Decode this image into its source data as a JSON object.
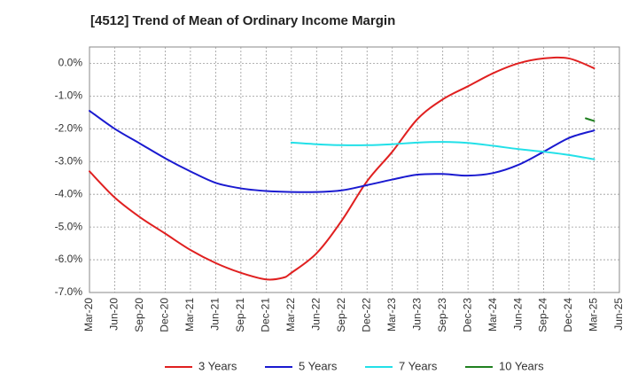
{
  "chart_data": {
    "type": "line",
    "title": "[4512]  Trend of Mean of Ordinary Income Margin",
    "xlabel": "",
    "ylabel": "",
    "x_ticks": [
      "Mar-20",
      "Jun-20",
      "Sep-20",
      "Dec-20",
      "Mar-21",
      "Jun-21",
      "Sep-21",
      "Dec-21",
      "Mar-22",
      "Jun-22",
      "Sep-22",
      "Dec-22",
      "Mar-23",
      "Jun-23",
      "Sep-23",
      "Dec-23",
      "Mar-24",
      "Jun-24",
      "Sep-24",
      "Dec-24",
      "Mar-25",
      "Jun-25"
    ],
    "y_ticks": [
      "0.0%",
      "-1.0%",
      "-2.0%",
      "-3.0%",
      "-4.0%",
      "-5.0%",
      "-6.0%",
      "-7.0%"
    ],
    "ylim": [
      -7.0,
      0.5
    ],
    "grid": true,
    "legend_position": "bottom",
    "series": [
      {
        "name": "3 Years",
        "color": "#e02020",
        "points": [
          [
            "Mar-20",
            -3.3
          ],
          [
            "Jun-20",
            -4.1
          ],
          [
            "Sep-20",
            -4.7
          ],
          [
            "Dec-20",
            -5.2
          ],
          [
            "Mar-21",
            -5.7
          ],
          [
            "Jun-21",
            -6.1
          ],
          [
            "Sep-21",
            -6.4
          ],
          [
            "Dec-21",
            -6.6
          ],
          [
            "Feb-22",
            -6.55
          ],
          [
            "Mar-22",
            -6.4
          ],
          [
            "Jun-22",
            -5.8
          ],
          [
            "Sep-22",
            -4.8
          ],
          [
            "Dec-22",
            -3.6
          ],
          [
            "Mar-23",
            -2.7
          ],
          [
            "Jun-23",
            -1.7
          ],
          [
            "Sep-23",
            -1.1
          ],
          [
            "Dec-23",
            -0.7
          ],
          [
            "Mar-24",
            -0.3
          ],
          [
            "Jun-24",
            0.0
          ],
          [
            "Sep-24",
            0.15
          ],
          [
            "Dec-24",
            0.15
          ],
          [
            "Mar-25",
            -0.15
          ]
        ]
      },
      {
        "name": "5 Years",
        "color": "#1a1ad0",
        "points": [
          [
            "Mar-20",
            -1.45
          ],
          [
            "Jun-20",
            -2.0
          ],
          [
            "Sep-20",
            -2.45
          ],
          [
            "Dec-20",
            -2.9
          ],
          [
            "Mar-21",
            -3.3
          ],
          [
            "Jun-21",
            -3.65
          ],
          [
            "Sep-21",
            -3.82
          ],
          [
            "Dec-21",
            -3.9
          ],
          [
            "Mar-22",
            -3.93
          ],
          [
            "Jun-22",
            -3.93
          ],
          [
            "Sep-22",
            -3.88
          ],
          [
            "Dec-22",
            -3.72
          ],
          [
            "Mar-23",
            -3.55
          ],
          [
            "Jun-23",
            -3.4
          ],
          [
            "Sep-23",
            -3.38
          ],
          [
            "Dec-23",
            -3.43
          ],
          [
            "Mar-24",
            -3.35
          ],
          [
            "Jun-24",
            -3.1
          ],
          [
            "Sep-24",
            -2.7
          ],
          [
            "Dec-24",
            -2.28
          ],
          [
            "Mar-25",
            -2.05
          ]
        ]
      },
      {
        "name": "7 Years",
        "color": "#22e0e8",
        "points": [
          [
            "Mar-22",
            -2.42
          ],
          [
            "Jun-22",
            -2.47
          ],
          [
            "Sep-22",
            -2.5
          ],
          [
            "Dec-22",
            -2.5
          ],
          [
            "Mar-23",
            -2.47
          ],
          [
            "Jun-23",
            -2.42
          ],
          [
            "Sep-23",
            -2.4
          ],
          [
            "Dec-23",
            -2.43
          ],
          [
            "Mar-24",
            -2.52
          ],
          [
            "Jun-24",
            -2.62
          ],
          [
            "Sep-24",
            -2.7
          ],
          [
            "Dec-24",
            -2.8
          ],
          [
            "Mar-25",
            -2.93
          ]
        ]
      },
      {
        "name": "10 Years",
        "color": "#208020",
        "points": [
          [
            "Feb-25",
            -1.68
          ],
          [
            "Mar-25",
            -1.76
          ]
        ]
      }
    ]
  }
}
